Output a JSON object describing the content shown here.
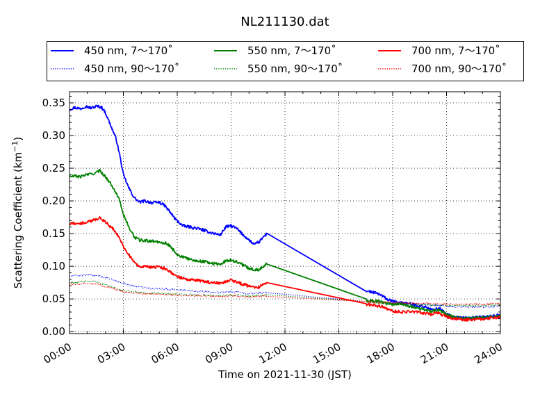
{
  "chart_data": {
    "type": "line",
    "title": "NL211130.dat",
    "xlabel": "Time on 2021-11-30 (JST)",
    "ylabel_main": "Scattering Coefficient (km",
    "ylabel_sup": "−1",
    "ylabel_end": ")",
    "xlim_hours": [
      0,
      24
    ],
    "ylim": [
      -0.003,
      0.367
    ],
    "xticks": [
      "00:00",
      "03:00",
      "06:00",
      "09:00",
      "12:00",
      "15:00",
      "18:00",
      "21:00",
      "24:00"
    ],
    "yticks": [
      "0.00",
      "0.05",
      "0.10",
      "0.15",
      "0.20",
      "0.25",
      "0.30",
      "0.35"
    ],
    "grid": true,
    "legend_position": "top",
    "series": [
      {
        "name": "450 nm, 7～170˚",
        "color": "#0000ff",
        "style": "solid",
        "points": [
          [
            0,
            0.34
          ],
          [
            0.3,
            0.343
          ],
          [
            0.6,
            0.341
          ],
          [
            0.9,
            0.345
          ],
          [
            1.2,
            0.342
          ],
          [
            1.5,
            0.345
          ],
          [
            1.8,
            0.343
          ],
          [
            2.0,
            0.335
          ],
          [
            2.3,
            0.315
          ],
          [
            2.6,
            0.295
          ],
          [
            2.8,
            0.27
          ],
          [
            3.0,
            0.24
          ],
          [
            3.3,
            0.22
          ],
          [
            3.6,
            0.205
          ],
          [
            3.9,
            0.198
          ],
          [
            4.2,
            0.2
          ],
          [
            4.6,
            0.197
          ],
          [
            5.0,
            0.198
          ],
          [
            5.3,
            0.193
          ],
          [
            5.6,
            0.183
          ],
          [
            5.9,
            0.172
          ],
          [
            6.3,
            0.162
          ],
          [
            6.7,
            0.16
          ],
          [
            7.1,
            0.158
          ],
          [
            7.5,
            0.155
          ],
          [
            7.8,
            0.152
          ],
          [
            8.1,
            0.15
          ],
          [
            8.4,
            0.148
          ],
          [
            8.7,
            0.16
          ],
          [
            9.0,
            0.162
          ],
          [
            9.3,
            0.158
          ],
          [
            9.6,
            0.15
          ],
          [
            10.0,
            0.14
          ],
          [
            10.3,
            0.133
          ],
          [
            10.6,
            0.138
          ],
          [
            10.8,
            0.145
          ],
          [
            11.0,
            0.15
          ],
          [
            16.5,
            0.063
          ],
          [
            16.9,
            0.06
          ],
          [
            17.2,
            0.058
          ],
          [
            17.5,
            0.053
          ],
          [
            17.8,
            0.048
          ],
          [
            18.2,
            0.045
          ],
          [
            18.6,
            0.044
          ],
          [
            19.0,
            0.042
          ],
          [
            19.4,
            0.04
          ],
          [
            19.8,
            0.038
          ],
          [
            20.2,
            0.033
          ],
          [
            20.6,
            0.036
          ],
          [
            21.0,
            0.027
          ],
          [
            21.4,
            0.022
          ],
          [
            21.8,
            0.021
          ],
          [
            22.2,
            0.021
          ],
          [
            22.6,
            0.022
          ],
          [
            23.0,
            0.022
          ],
          [
            23.4,
            0.023
          ],
          [
            23.8,
            0.025
          ],
          [
            24.0,
            0.027
          ]
        ]
      },
      {
        "name": "450 nm, 90～170˚",
        "color": "#0000ff",
        "style": "dotted",
        "points": [
          [
            0,
            0.085
          ],
          [
            0.5,
            0.086
          ],
          [
            1.0,
            0.087
          ],
          [
            1.5,
            0.086
          ],
          [
            2.0,
            0.083
          ],
          [
            2.5,
            0.078
          ],
          [
            3.0,
            0.074
          ],
          [
            3.5,
            0.07
          ],
          [
            4.0,
            0.068
          ],
          [
            4.5,
            0.066
          ],
          [
            5.0,
            0.066
          ],
          [
            5.5,
            0.065
          ],
          [
            6.0,
            0.064
          ],
          [
            6.5,
            0.063
          ],
          [
            7.0,
            0.062
          ],
          [
            7.5,
            0.061
          ],
          [
            8.0,
            0.06
          ],
          [
            8.5,
            0.06
          ],
          [
            9.0,
            0.061
          ],
          [
            9.5,
            0.06
          ],
          [
            10.0,
            0.058
          ],
          [
            10.5,
            0.059
          ],
          [
            11.0,
            0.06
          ],
          [
            16.5,
            0.047
          ],
          [
            17.0,
            0.046
          ],
          [
            17.5,
            0.045
          ],
          [
            18.0,
            0.045
          ],
          [
            18.5,
            0.044
          ],
          [
            19.0,
            0.043
          ],
          [
            19.5,
            0.042
          ],
          [
            20.0,
            0.041
          ],
          [
            20.5,
            0.04
          ],
          [
            21.0,
            0.039
          ],
          [
            21.5,
            0.038
          ],
          [
            22.0,
            0.038
          ],
          [
            22.5,
            0.038
          ],
          [
            23.0,
            0.038
          ],
          [
            23.5,
            0.038
          ],
          [
            24.0,
            0.039
          ]
        ]
      },
      {
        "name": "550 nm, 7～170˚",
        "color": "#008000",
        "style": "solid",
        "points": [
          [
            0,
            0.237
          ],
          [
            0.3,
            0.238
          ],
          [
            0.6,
            0.237
          ],
          [
            0.9,
            0.24
          ],
          [
            1.2,
            0.241
          ],
          [
            1.5,
            0.243
          ],
          [
            1.7,
            0.247
          ],
          [
            1.9,
            0.24
          ],
          [
            2.2,
            0.23
          ],
          [
            2.5,
            0.218
          ],
          [
            2.8,
            0.2
          ],
          [
            3.0,
            0.18
          ],
          [
            3.3,
            0.16
          ],
          [
            3.6,
            0.145
          ],
          [
            3.9,
            0.14
          ],
          [
            4.3,
            0.139
          ],
          [
            4.7,
            0.138
          ],
          [
            5.1,
            0.137
          ],
          [
            5.4,
            0.135
          ],
          [
            5.7,
            0.128
          ],
          [
            6.0,
            0.118
          ],
          [
            6.4,
            0.113
          ],
          [
            6.8,
            0.11
          ],
          [
            7.2,
            0.108
          ],
          [
            7.6,
            0.107
          ],
          [
            8.0,
            0.104
          ],
          [
            8.4,
            0.103
          ],
          [
            8.7,
            0.108
          ],
          [
            9.0,
            0.11
          ],
          [
            9.3,
            0.107
          ],
          [
            9.6,
            0.103
          ],
          [
            10.0,
            0.097
          ],
          [
            10.4,
            0.094
          ],
          [
            10.7,
            0.097
          ],
          [
            10.9,
            0.103
          ],
          [
            11.0,
            0.106
          ],
          [
            16.5,
            0.048
          ],
          [
            16.9,
            0.047
          ],
          [
            17.3,
            0.046
          ],
          [
            17.7,
            0.043
          ],
          [
            18.1,
            0.042
          ],
          [
            18.5,
            0.043
          ],
          [
            18.9,
            0.039
          ],
          [
            19.3,
            0.036
          ],
          [
            19.7,
            0.034
          ],
          [
            20.1,
            0.031
          ],
          [
            20.5,
            0.033
          ],
          [
            20.9,
            0.028
          ],
          [
            21.3,
            0.023
          ],
          [
            21.7,
            0.021
          ],
          [
            22.1,
            0.02
          ],
          [
            22.5,
            0.021
          ],
          [
            22.9,
            0.021
          ],
          [
            23.3,
            0.022
          ],
          [
            23.7,
            0.023
          ],
          [
            24.0,
            0.024
          ]
        ]
      },
      {
        "name": "550 nm, 90～170˚",
        "color": "#008000",
        "style": "dotted",
        "points": [
          [
            0,
            0.075
          ],
          [
            0.5,
            0.076
          ],
          [
            1.0,
            0.077
          ],
          [
            1.5,
            0.076
          ],
          [
            2.0,
            0.072
          ],
          [
            2.5,
            0.067
          ],
          [
            3.0,
            0.063
          ],
          [
            3.5,
            0.061
          ],
          [
            4.0,
            0.06
          ],
          [
            4.5,
            0.059
          ],
          [
            5.0,
            0.059
          ],
          [
            5.5,
            0.058
          ],
          [
            6.0,
            0.057
          ],
          [
            6.5,
            0.057
          ],
          [
            7.0,
            0.056
          ],
          [
            7.5,
            0.056
          ],
          [
            8.0,
            0.055
          ],
          [
            8.5,
            0.055
          ],
          [
            9.0,
            0.056
          ],
          [
            9.5,
            0.055
          ],
          [
            10.0,
            0.054
          ],
          [
            10.5,
            0.055
          ],
          [
            11.0,
            0.056
          ],
          [
            16.5,
            0.045
          ],
          [
            17.0,
            0.044
          ],
          [
            17.5,
            0.043
          ],
          [
            18.0,
            0.043
          ],
          [
            18.5,
            0.042
          ],
          [
            19.0,
            0.042
          ],
          [
            19.5,
            0.041
          ],
          [
            20.0,
            0.041
          ],
          [
            20.5,
            0.04
          ],
          [
            21.0,
            0.04
          ],
          [
            21.5,
            0.04
          ],
          [
            22.0,
            0.04
          ],
          [
            22.5,
            0.04
          ],
          [
            23.0,
            0.04
          ],
          [
            23.5,
            0.041
          ],
          [
            24.0,
            0.041
          ]
        ]
      },
      {
        "name": "700 nm, 7～170˚",
        "color": "#ff0000",
        "style": "solid",
        "points": [
          [
            0,
            0.165
          ],
          [
            0.3,
            0.166
          ],
          [
            0.6,
            0.165
          ],
          [
            0.9,
            0.167
          ],
          [
            1.2,
            0.169
          ],
          [
            1.5,
            0.172
          ],
          [
            1.7,
            0.175
          ],
          [
            1.9,
            0.17
          ],
          [
            2.2,
            0.163
          ],
          [
            2.5,
            0.155
          ],
          [
            2.8,
            0.143
          ],
          [
            3.0,
            0.13
          ],
          [
            3.3,
            0.118
          ],
          [
            3.6,
            0.106
          ],
          [
            3.9,
            0.1
          ],
          [
            4.3,
            0.099
          ],
          [
            4.7,
            0.099
          ],
          [
            5.1,
            0.098
          ],
          [
            5.4,
            0.096
          ],
          [
            5.7,
            0.09
          ],
          [
            6.0,
            0.084
          ],
          [
            6.4,
            0.081
          ],
          [
            6.8,
            0.079
          ],
          [
            7.2,
            0.078
          ],
          [
            7.6,
            0.076
          ],
          [
            8.0,
            0.075
          ],
          [
            8.4,
            0.074
          ],
          [
            8.7,
            0.077
          ],
          [
            9.0,
            0.079
          ],
          [
            9.3,
            0.076
          ],
          [
            9.6,
            0.073
          ],
          [
            10.0,
            0.07
          ],
          [
            10.4,
            0.067
          ],
          [
            10.7,
            0.07
          ],
          [
            10.9,
            0.074
          ],
          [
            11.0,
            0.076
          ],
          [
            16.5,
            0.042
          ],
          [
            16.9,
            0.041
          ],
          [
            17.3,
            0.039
          ],
          [
            17.7,
            0.035
          ],
          [
            18.1,
            0.031
          ],
          [
            18.5,
            0.03
          ],
          [
            18.9,
            0.031
          ],
          [
            19.3,
            0.03
          ],
          [
            19.7,
            0.029
          ],
          [
            20.1,
            0.026
          ],
          [
            20.5,
            0.029
          ],
          [
            20.9,
            0.024
          ],
          [
            21.3,
            0.02
          ],
          [
            21.7,
            0.019
          ],
          [
            22.1,
            0.018
          ],
          [
            22.5,
            0.019
          ],
          [
            22.9,
            0.019
          ],
          [
            23.3,
            0.02
          ],
          [
            23.7,
            0.021
          ],
          [
            24.0,
            0.022
          ]
        ]
      },
      {
        "name": "700 nm, 90～170˚",
        "color": "#ff0000",
        "style": "dotted",
        "points": [
          [
            0,
            0.072
          ],
          [
            0.5,
            0.073
          ],
          [
            1.0,
            0.074
          ],
          [
            1.5,
            0.073
          ],
          [
            2.0,
            0.069
          ],
          [
            2.5,
            0.065
          ],
          [
            3.0,
            0.061
          ],
          [
            3.5,
            0.059
          ],
          [
            4.0,
            0.058
          ],
          [
            4.5,
            0.058
          ],
          [
            5.0,
            0.057
          ],
          [
            5.5,
            0.056
          ],
          [
            6.0,
            0.056
          ],
          [
            6.5,
            0.055
          ],
          [
            7.0,
            0.055
          ],
          [
            7.5,
            0.054
          ],
          [
            8.0,
            0.054
          ],
          [
            8.5,
            0.054
          ],
          [
            9.0,
            0.055
          ],
          [
            9.5,
            0.054
          ],
          [
            10.0,
            0.053
          ],
          [
            10.5,
            0.054
          ],
          [
            11.0,
            0.055
          ],
          [
            16.5,
            0.046
          ],
          [
            17.0,
            0.045
          ],
          [
            17.5,
            0.045
          ],
          [
            18.0,
            0.044
          ],
          [
            18.5,
            0.044
          ],
          [
            19.0,
            0.044
          ],
          [
            19.5,
            0.043
          ],
          [
            20.0,
            0.043
          ],
          [
            20.5,
            0.043
          ],
          [
            21.0,
            0.042
          ],
          [
            21.5,
            0.042
          ],
          [
            22.0,
            0.042
          ],
          [
            22.5,
            0.042
          ],
          [
            23.0,
            0.042
          ],
          [
            23.5,
            0.043
          ],
          [
            24.0,
            0.043
          ]
        ]
      }
    ]
  }
}
